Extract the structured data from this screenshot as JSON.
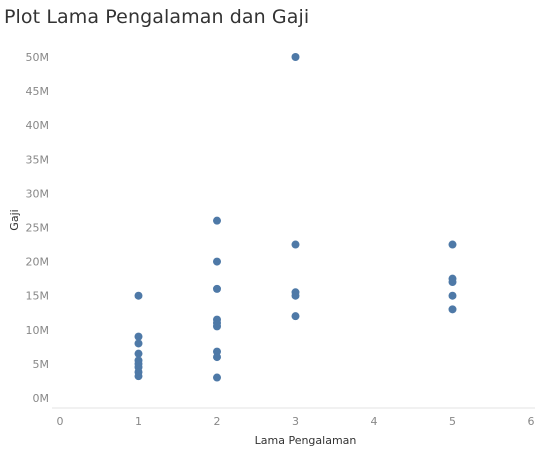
{
  "chart_data": {
    "type": "scatter",
    "title": "Plot Lama Pengalaman dan Gaji",
    "xlabel": "Lama Pengalaman",
    "ylabel": "Gaji",
    "xlim": [
      0,
      6
    ],
    "ylim": [
      0,
      50
    ],
    "x_ticks": [
      0,
      1,
      2,
      3,
      4,
      5,
      6
    ],
    "x_tick_labels": [
      "0",
      "1",
      "2",
      "3",
      "4",
      "5",
      "6"
    ],
    "y_ticks": [
      0,
      5,
      10,
      15,
      20,
      25,
      30,
      35,
      40,
      45,
      50
    ],
    "y_tick_labels": [
      "0M",
      "5M",
      "10M",
      "15M",
      "20M",
      "25M",
      "30M",
      "35M",
      "40M",
      "45M",
      "50M"
    ],
    "grid": false,
    "point_color": "#4e79a7",
    "series": [
      {
        "points": [
          {
            "x": 1,
            "y": 15.0
          },
          {
            "x": 1,
            "y": 9.0
          },
          {
            "x": 1,
            "y": 8.0
          },
          {
            "x": 1,
            "y": 6.5
          },
          {
            "x": 1,
            "y": 5.5
          },
          {
            "x": 1,
            "y": 5.0
          },
          {
            "x": 1,
            "y": 4.5
          },
          {
            "x": 1,
            "y": 3.8
          },
          {
            "x": 1,
            "y": 3.2
          },
          {
            "x": 2,
            "y": 26.0
          },
          {
            "x": 2,
            "y": 20.0
          },
          {
            "x": 2,
            "y": 16.0
          },
          {
            "x": 2,
            "y": 11.5
          },
          {
            "x": 2,
            "y": 11.0
          },
          {
            "x": 2,
            "y": 10.5
          },
          {
            "x": 2,
            "y": 6.8
          },
          {
            "x": 2,
            "y": 6.0
          },
          {
            "x": 2,
            "y": 3.0
          },
          {
            "x": 3,
            "y": 50.0
          },
          {
            "x": 3,
            "y": 22.5
          },
          {
            "x": 3,
            "y": 15.5
          },
          {
            "x": 3,
            "y": 15.0
          },
          {
            "x": 3,
            "y": 12.0
          },
          {
            "x": 5,
            "y": 22.5
          },
          {
            "x": 5,
            "y": 17.5
          },
          {
            "x": 5,
            "y": 17.0
          },
          {
            "x": 5,
            "y": 15.0
          },
          {
            "x": 5,
            "y": 13.0
          }
        ]
      }
    ]
  }
}
